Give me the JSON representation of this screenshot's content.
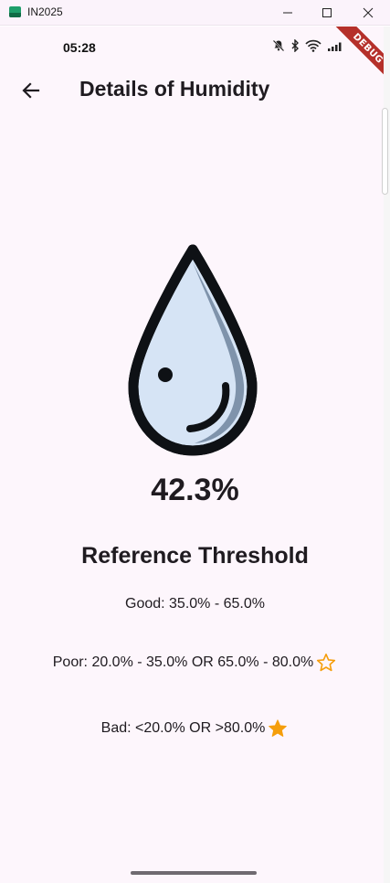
{
  "window": {
    "title": "IN2025",
    "minimize_glyph": "—",
    "maximize_glyph": "☐",
    "close_glyph": "✕"
  },
  "status_bar": {
    "time": "05:28",
    "icons": [
      "notifications-off-icon",
      "bluetooth-icon",
      "wifi-icon",
      "signal-icon",
      "battery-icon"
    ]
  },
  "debug_banner": "DEBUG",
  "app_bar": {
    "back_icon": "arrow-back-icon",
    "title": "Details of Humidity"
  },
  "metric": {
    "icon": "water-drop-icon",
    "value": "42.3%"
  },
  "reference": {
    "title": "Reference Threshold",
    "good": "Good: 35.0% - 65.0%",
    "poor": "Poor: 20.0% - 35.0% OR 65.0% - 80.0%",
    "bad": "Bad: <20.0% OR >80.0%",
    "poor_icon": "star-outline-icon",
    "bad_icon": "star-filled-icon",
    "star_color": "#f59e0b"
  },
  "colors": {
    "background": "#fdf6fc",
    "drop_fill": "#d6e4f5",
    "drop_outline": "#0e1115",
    "drop_shadow": "#7f93ab",
    "debug_banner": "#b5302a"
  }
}
